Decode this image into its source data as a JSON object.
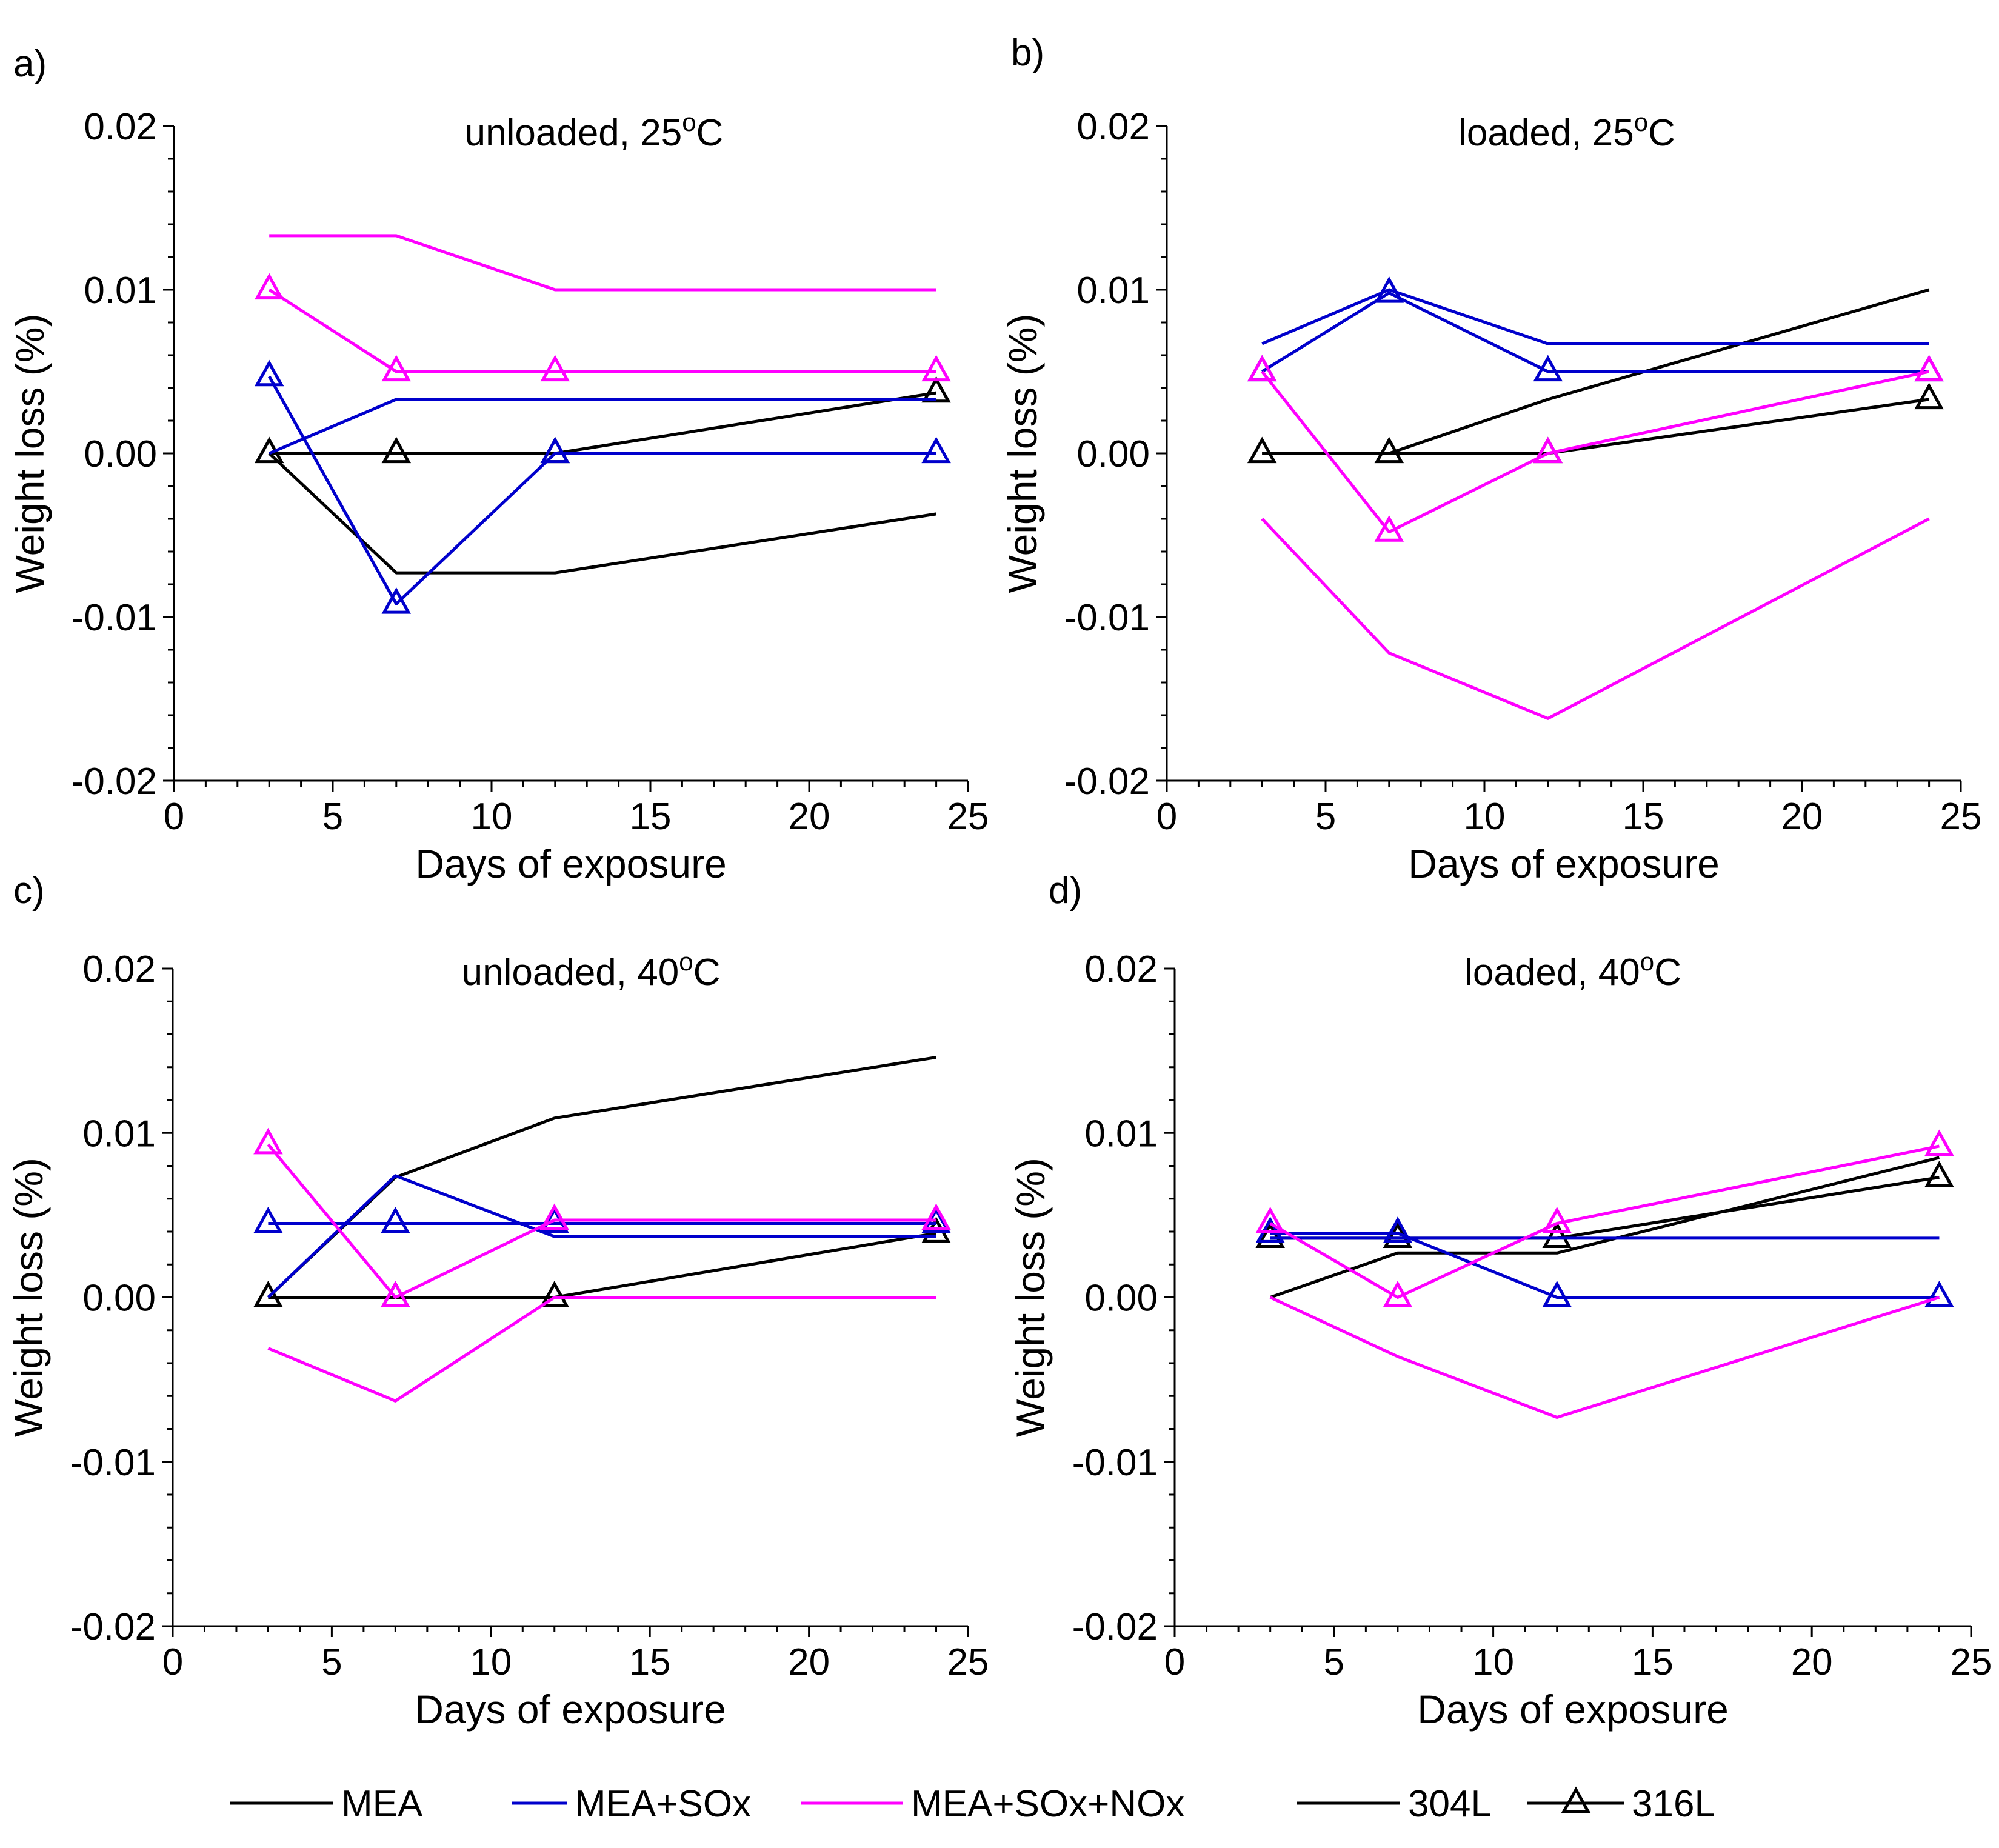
{
  "chart_data": [
    {
      "type": "line",
      "panel_label": "a)",
      "title": "unloaded, 25",
      "title_sup": "o",
      "title_suffix": "C",
      "xlabel": "Days of exposure",
      "ylabel": "Weight loss (%)",
      "xlim": [
        0,
        25
      ],
      "ylim": [
        -0.02,
        0.02
      ],
      "x_ticks": [
        "0",
        "5",
        "10",
        "15",
        "20",
        "25"
      ],
      "y_ticks": [
        "-0.02",
        "-0.01",
        "0.00",
        "0.01",
        "0.02"
      ],
      "series": [
        {
          "name": "MEA",
          "alloy": "304L",
          "color": "#000000",
          "x": [
            3,
            7,
            12,
            24
          ],
          "values": [
            0,
            -0.0073,
            -0.0073,
            -0.0037
          ]
        },
        {
          "name": "MEA",
          "alloy": "316L",
          "color": "#000000",
          "x": [
            3,
            7,
            12,
            24
          ],
          "values": [
            0,
            0,
            0,
            0.0037
          ]
        },
        {
          "name": "MEA+SOx",
          "alloy": "304L",
          "color": "#0000CC",
          "x": [
            3,
            7,
            12,
            24
          ],
          "values": [
            0,
            0.0033,
            0.0033,
            0.0033
          ]
        },
        {
          "name": "MEA+SOx",
          "alloy": "316L",
          "color": "#0000CC",
          "x": [
            3,
            7,
            12,
            24
          ],
          "values": [
            0.0047,
            -0.0092,
            0,
            0
          ]
        },
        {
          "name": "MEA+SOx+NOx",
          "alloy": "304L",
          "color": "#FF00FF",
          "x": [
            3,
            7,
            12,
            24
          ],
          "values": [
            0.0133,
            0.0133,
            0.01,
            0.01
          ]
        },
        {
          "name": "MEA+SOx+NOx",
          "alloy": "316L",
          "color": "#FF00FF",
          "x": [
            3,
            7,
            12,
            24
          ],
          "values": [
            0.01,
            0.005,
            0.005,
            0.005
          ]
        }
      ]
    },
    {
      "type": "line",
      "panel_label": "b)",
      "title": "loaded, 25",
      "title_sup": "o",
      "title_suffix": "C",
      "xlabel": "Days of exposure",
      "ylabel": "Weight loss (%)",
      "xlim": [
        0,
        25
      ],
      "ylim": [
        -0.02,
        0.02
      ],
      "x_ticks": [
        "0",
        "5",
        "10",
        "15",
        "20",
        "25"
      ],
      "y_ticks": [
        "-0.02",
        "-0.01",
        "0.00",
        "0.01",
        "0.02"
      ],
      "series": [
        {
          "name": "MEA",
          "alloy": "304L",
          "color": "#000000",
          "x": [
            3,
            7,
            12,
            24
          ],
          "values": [
            0,
            0,
            0.0033,
            0.01
          ]
        },
        {
          "name": "MEA",
          "alloy": "316L",
          "color": "#000000",
          "x": [
            3,
            7,
            12,
            24
          ],
          "values": [
            0,
            0,
            0,
            0.0033
          ]
        },
        {
          "name": "MEA+SOx",
          "alloy": "304L",
          "color": "#0000CC",
          "x": [
            3,
            7,
            12,
            24
          ],
          "values": [
            0.0067,
            0.01,
            0.0067,
            0.0067
          ]
        },
        {
          "name": "MEA+SOx",
          "alloy": "316L",
          "color": "#0000CC",
          "x": [
            3,
            7,
            12,
            24
          ],
          "values": [
            0.005,
            0.0098,
            0.005,
            0.005
          ]
        },
        {
          "name": "MEA+SOx+NOx",
          "alloy": "304L",
          "color": "#FF00FF",
          "x": [
            3,
            7,
            12,
            24
          ],
          "values": [
            -0.004,
            -0.0122,
            -0.0162,
            -0.004
          ]
        },
        {
          "name": "MEA+SOx+NOx",
          "alloy": "316L",
          "color": "#FF00FF",
          "x": [
            3,
            7,
            12,
            24
          ],
          "values": [
            0.005,
            -0.0048,
            0,
            0.005
          ]
        }
      ]
    },
    {
      "type": "line",
      "panel_label": "c)",
      "title": "unloaded, 40",
      "title_sup": "o",
      "title_suffix": "C",
      "xlabel": "Days of exposure",
      "ylabel": "Weight loss (%)",
      "xlim": [
        0,
        25
      ],
      "ylim": [
        -0.02,
        0.02
      ],
      "x_ticks": [
        "0",
        "5",
        "10",
        "15",
        "20",
        "25"
      ],
      "y_ticks": [
        "-0.02",
        "-0.01",
        "0.00",
        "0.01",
        "0.02"
      ],
      "series": [
        {
          "name": "MEA",
          "alloy": "304L",
          "color": "#000000",
          "x": [
            3,
            7,
            12,
            24
          ],
          "values": [
            0,
            0.0073,
            0.0109,
            0.0146
          ]
        },
        {
          "name": "MEA",
          "alloy": "316L",
          "color": "#000000",
          "x": [
            3,
            7,
            12,
            24
          ],
          "values": [
            0,
            0,
            0,
            0.0039
          ]
        },
        {
          "name": "MEA+SOx",
          "alloy": "304L",
          "color": "#0000CC",
          "x": [
            3,
            7,
            12,
            24
          ],
          "values": [
            0,
            0.0074,
            0.0037,
            0.0037
          ]
        },
        {
          "name": "MEA+SOx",
          "alloy": "316L",
          "color": "#0000CC",
          "x": [
            3,
            7,
            12,
            24
          ],
          "values": [
            0.0045,
            0.0045,
            0.0045,
            0.0045
          ]
        },
        {
          "name": "MEA+SOx+NOx",
          "alloy": "304L",
          "color": "#FF00FF",
          "x": [
            3,
            7,
            12,
            24
          ],
          "values": [
            -0.0031,
            -0.0063,
            0,
            0
          ]
        },
        {
          "name": "MEA+SOx+NOx",
          "alloy": "316L",
          "color": "#FF00FF",
          "x": [
            3,
            7,
            12,
            24
          ],
          "values": [
            0.0093,
            0,
            0.0047,
            0.0047
          ]
        }
      ]
    },
    {
      "type": "line",
      "panel_label": "d)",
      "title": "loaded, 40",
      "title_sup": "o",
      "title_suffix": "C",
      "xlabel": "Days of exposure",
      "ylabel": "Weight loss (%)",
      "xlim": [
        0,
        25
      ],
      "ylim": [
        -0.02,
        0.02
      ],
      "x_ticks": [
        "0",
        "5",
        "10",
        "15",
        "20",
        "25"
      ],
      "y_ticks": [
        "-0.02",
        "-0.01",
        "0.00",
        "0.01",
        "0.02"
      ],
      "series": [
        {
          "name": "MEA",
          "alloy": "304L",
          "color": "#000000",
          "x": [
            3,
            7,
            12,
            24
          ],
          "values": [
            0,
            0.0027,
            0.0027,
            0.0085
          ]
        },
        {
          "name": "MEA",
          "alloy": "316L",
          "color": "#000000",
          "x": [
            3,
            7,
            12,
            24
          ],
          "values": [
            0.0036,
            0.0036,
            0.0036,
            0.0073
          ]
        },
        {
          "name": "MEA+SOx",
          "alloy": "304L",
          "color": "#0000CC",
          "x": [
            3,
            7,
            12,
            24
          ],
          "values": [
            0.0036,
            0.0036,
            0.0036,
            0.0036
          ]
        },
        {
          "name": "MEA+SOx",
          "alloy": "316L",
          "color": "#0000CC",
          "x": [
            3,
            7,
            12,
            24
          ],
          "values": [
            0.0039,
            0.0039,
            0,
            0
          ]
        },
        {
          "name": "MEA+SOx+NOx",
          "alloy": "304L",
          "color": "#FF00FF",
          "x": [
            3,
            7,
            12,
            24
          ],
          "values": [
            0,
            -0.0036,
            -0.0073,
            0
          ]
        },
        {
          "name": "MEA+SOx+NOx",
          "alloy": "316L",
          "color": "#FF00FF",
          "x": [
            3,
            7,
            12,
            24
          ],
          "values": [
            0.0045,
            0,
            0.0045,
            0.0092
          ]
        }
      ]
    }
  ],
  "legend": {
    "items": [
      {
        "label": "MEA",
        "color": "#000000",
        "marker": false
      },
      {
        "label": "MEA+SOx",
        "color": "#0000CC",
        "marker": false
      },
      {
        "label": "MEA+SOx+NOx",
        "color": "#FF00FF",
        "marker": false
      },
      {
        "label": "304L",
        "color": "#000000",
        "marker": false
      },
      {
        "label": "316L",
        "color": "#000000",
        "marker": true
      }
    ]
  }
}
